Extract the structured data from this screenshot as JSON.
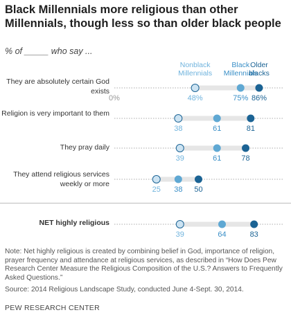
{
  "title": "Black Millennials more religious than other Millennials, though less so than older black people",
  "subtitle": "% of _____ who say ...",
  "chart_data": {
    "type": "dot",
    "xlim": [
      0,
      100
    ],
    "zero_label": "0%",
    "series": [
      {
        "name": "Nonblack Millennials",
        "color": "#cce3f2"
      },
      {
        "name": "Black Millennials",
        "color": "#5fa8d3"
      },
      {
        "name": "Older blacks",
        "color": "#1b6394"
      }
    ],
    "rows": [
      {
        "label": "They are absolutely certain God exists",
        "values": [
          48,
          75,
          86
        ],
        "labels": [
          "48%",
          "75%",
          "86%"
        ],
        "net": false
      },
      {
        "label": "Religion is very important to them",
        "values": [
          38,
          61,
          81
        ],
        "labels": [
          "38",
          "61",
          "81"
        ],
        "net": false
      },
      {
        "label": "They pray daily",
        "values": [
          39,
          61,
          78
        ],
        "labels": [
          "39",
          "61",
          "78"
        ],
        "net": false
      },
      {
        "label": "They attend religious services weekly or more",
        "values": [
          25,
          38,
          50
        ],
        "labels": [
          "25",
          "38",
          "50"
        ],
        "net": false
      },
      {
        "label": "NET highly religious",
        "values": [
          39,
          64,
          83
        ],
        "labels": [
          "39",
          "64",
          "83"
        ],
        "net": true
      }
    ]
  },
  "note": "Note: Net highly religious is created by combining belief in God, importance of religion, prayer frequency and attendance at religious services, as described in “How Does Pew Research Center Measure the Religious Composition of the U.S.? Answers to Frequently Asked Questions.”",
  "source": "Source: 2014 Religious Landscape Study, conducted June 4-Sept. 30, 2014.",
  "credit": "PEW RESEARCH CENTER"
}
